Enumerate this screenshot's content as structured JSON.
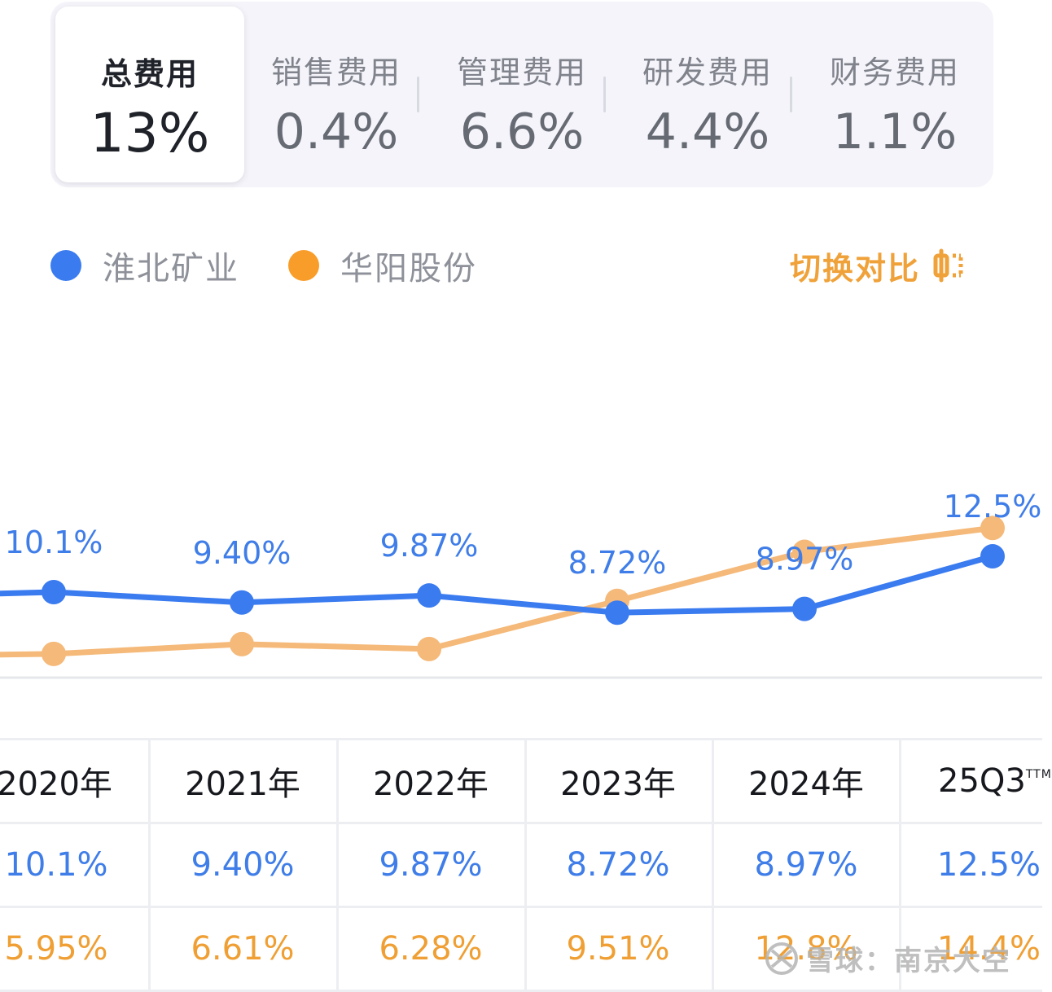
{
  "tabs": [
    {
      "label": "总费用",
      "value": "13%",
      "active": true
    },
    {
      "label": "销售费用",
      "value": "0.4%",
      "active": false
    },
    {
      "label": "管理费用",
      "value": "6.6%",
      "active": false
    },
    {
      "label": "研发费用",
      "value": "4.4%",
      "active": false
    },
    {
      "label": "财务费用",
      "value": "1.1%",
      "active": false
    }
  ],
  "legend": {
    "series_a": "淮北矿业",
    "series_b": "华阳股份",
    "switch_label": "切换对比",
    "switch_icon": "compare-toggle-icon"
  },
  "colors": {
    "series_a": "#3a7bf0",
    "series_b": "#f5b979",
    "series_b_text": "#ef9f33",
    "accent": "#f0a23a"
  },
  "chart_data": {
    "type": "line",
    "categories": [
      "2020年",
      "2021年",
      "2022年",
      "2023年",
      "2024年",
      "25Q3TTM"
    ],
    "series": [
      {
        "name": "淮北矿业",
        "values": [
          10.1,
          9.4,
          9.87,
          8.72,
          8.97,
          12.5
        ],
        "labels": [
          "10.1%",
          "9.40%",
          "9.87%",
          "8.72%",
          "8.97%",
          "12.5%"
        ]
      },
      {
        "name": "华阳股份",
        "values": [
          5.95,
          6.61,
          6.28,
          9.51,
          12.8,
          14.4
        ],
        "labels": [
          "5.95%",
          "6.61%",
          "6.28%",
          "9.51%",
          "12.8%",
          "14.4%"
        ]
      }
    ],
    "show_data_labels_for": "淮北矿业",
    "grid": false
  },
  "table": {
    "header": [
      "2020年",
      "2021年",
      "2022年",
      "2023年",
      "2024年",
      "25Q3"
    ],
    "header_last_sup": "TTM",
    "rows": [
      [
        "10.1%",
        "9.40%",
        "9.87%",
        "8.72%",
        "8.97%",
        "12.5%"
      ],
      [
        "5.95%",
        "6.61%",
        "6.28%",
        "9.51%",
        "12.8%",
        "14.4%"
      ]
    ]
  },
  "watermark": {
    "text": "雪球：南京大空",
    "icon": "xueqiu-logo-icon"
  }
}
